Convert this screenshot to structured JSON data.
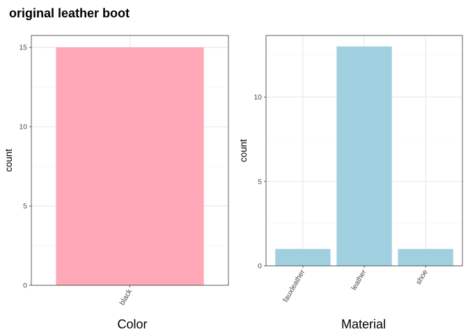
{
  "title": "original leather boot",
  "chart_data": [
    {
      "type": "bar",
      "categories": [
        "black"
      ],
      "values": [
        15
      ],
      "xlabel": "Color",
      "ylabel": "count",
      "ylim": [
        0,
        15.75
      ],
      "yticks": [
        0,
        5,
        10,
        15
      ],
      "grid": true,
      "bar_color": "#FFA8B8"
    },
    {
      "type": "bar",
      "categories": [
        "fauxleather",
        "leather",
        "shoe"
      ],
      "values": [
        1,
        13,
        1
      ],
      "xlabel": "Material",
      "ylabel": "count",
      "ylim": [
        0,
        13.65
      ],
      "yticks": [
        0,
        5,
        10
      ],
      "grid": true,
      "bar_color": "#A0D0E0"
    }
  ]
}
